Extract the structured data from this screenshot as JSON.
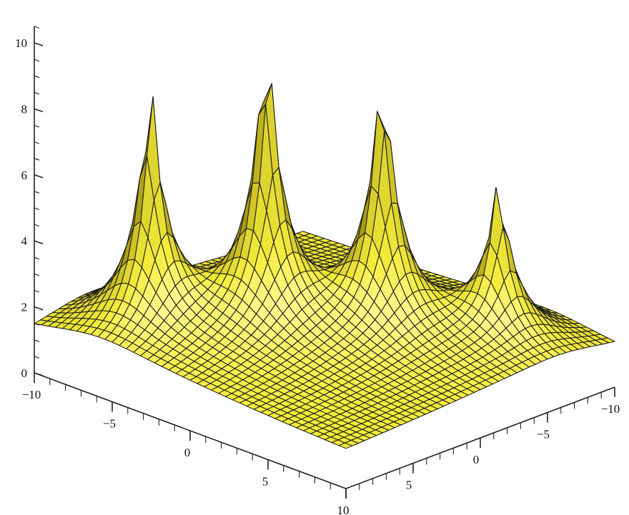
{
  "chart_data": {
    "type": "surface3d",
    "title": "",
    "description_of_surface": "z(x, y) with four sharp peaks rising from a flat floor at z = 1",
    "x_axis": {
      "label": "",
      "range": [
        -10,
        10
      ],
      "ticks": [
        -10,
        -5,
        0,
        5,
        10
      ],
      "tick_labels": [
        "−10",
        "−5",
        "0",
        "5",
        "10"
      ]
    },
    "y_axis": {
      "label": "",
      "range": [
        -10,
        10
      ],
      "ticks": [
        -10,
        -5,
        0,
        5
      ],
      "tick_labels": [
        "−10",
        "−5",
        "0",
        "5"
      ]
    },
    "z_axis": {
      "label": "",
      "range": [
        0,
        10.5
      ],
      "ticks": [
        0,
        2,
        4,
        6,
        8,
        10
      ],
      "tick_labels": [
        "0",
        "2",
        "4",
        "6",
        "8",
        "10"
      ]
    },
    "baseline_z": 1,
    "peaks": [
      {
        "x": -6,
        "y": 6,
        "z": 9.1
      },
      {
        "x": -2,
        "y": 2,
        "z": 10.8
      },
      {
        "x": 2,
        "y": -2,
        "z": 9.8
      },
      {
        "x": 6,
        "y": -6,
        "z": 6.2
      }
    ],
    "colors": {
      "surface": "#f4ec3a",
      "surface_light": "#fff78a",
      "surface_dark": "#a89a12",
      "mesh": "#1a1a1a",
      "axes": "#222222"
    }
  }
}
